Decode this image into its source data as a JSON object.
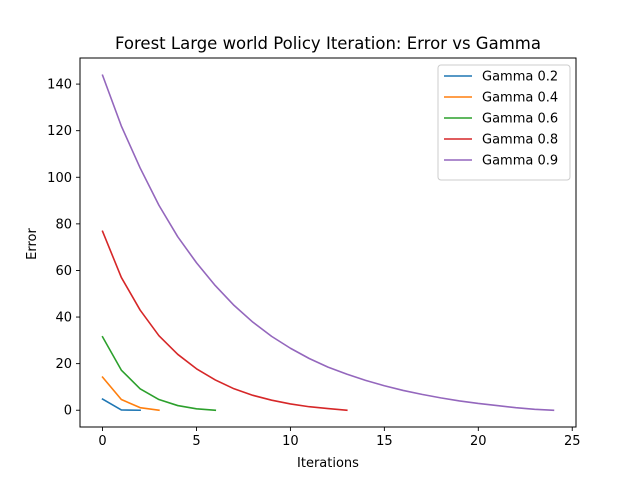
{
  "chart_data": {
    "type": "line",
    "title": "Forest Large world Policy Iteration: Error vs Gamma",
    "xlabel": "Iterations",
    "ylabel": "Error",
    "xlim": [
      -1.2,
      25.2
    ],
    "ylim": [
      -7.2,
      151.2
    ],
    "xticks": [
      0,
      5,
      10,
      15,
      20,
      25
    ],
    "yticks": [
      0,
      20,
      40,
      60,
      80,
      100,
      120,
      140
    ],
    "grid": false,
    "legend_position": "top-right",
    "series": [
      {
        "name": "Gamma 0.2",
        "color": "#1f77b4",
        "x": [
          0,
          1,
          2
        ],
        "y": [
          4.8,
          0.1,
          0
        ]
      },
      {
        "name": "Gamma 0.4",
        "color": "#ff7f0e",
        "x": [
          0,
          1,
          2,
          3
        ],
        "y": [
          14.2,
          4.6,
          1.1,
          0
        ]
      },
      {
        "name": "Gamma 0.6",
        "color": "#2ca02c",
        "x": [
          0,
          1,
          2,
          3,
          4,
          5,
          6
        ],
        "y": [
          31.5,
          17.2,
          9.2,
          4.6,
          2.0,
          0.6,
          0
        ]
      },
      {
        "name": "Gamma 0.8",
        "color": "#d62728",
        "x": [
          0,
          1,
          2,
          3,
          4,
          5,
          6,
          7,
          8,
          9,
          10,
          11,
          12,
          13
        ],
        "y": [
          76.8,
          57.0,
          43.0,
          32.0,
          24.0,
          17.8,
          13.0,
          9.2,
          6.4,
          4.3,
          2.7,
          1.5,
          0.7,
          0
        ]
      },
      {
        "name": "Gamma 0.9",
        "color": "#9467bd",
        "x": [
          0,
          1,
          2,
          3,
          4,
          5,
          6,
          7,
          8,
          9,
          10,
          11,
          12,
          13,
          14,
          15,
          16,
          17,
          18,
          19,
          20,
          21,
          22,
          23,
          24
        ],
        "y": [
          143.8,
          122.0,
          104.0,
          88.0,
          74.5,
          63.3,
          53.5,
          45.0,
          37.8,
          31.7,
          26.6,
          22.2,
          18.5,
          15.5,
          12.8,
          10.5,
          8.5,
          6.8,
          5.3,
          4.0,
          2.9,
          2.0,
          1.1,
          0.4,
          0
        ]
      }
    ]
  }
}
